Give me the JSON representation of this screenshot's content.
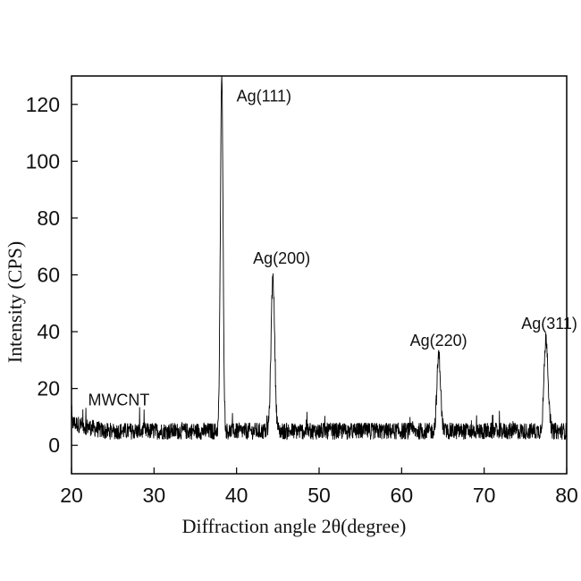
{
  "chart_data": {
    "type": "line",
    "title": "",
    "xlabel": "Diffraction angle 2θ(degree)",
    "ylabel": "Intensity (CPS)",
    "xlim": [
      20,
      80
    ],
    "ylim": [
      -10,
      130
    ],
    "xticks": [
      20,
      30,
      40,
      50,
      60,
      70,
      80
    ],
    "yticks": [
      0,
      20,
      40,
      60,
      80,
      100,
      120
    ],
    "grid": false,
    "line_color": "#000000",
    "baseline": 5,
    "noise_amplitude": 3,
    "peaks": [
      {
        "label": "Ag(111)",
        "x": 38.2,
        "y": 130
      },
      {
        "label": "Ag(200)",
        "x": 44.4,
        "y": 59
      },
      {
        "label": "Ag(220)",
        "x": 64.5,
        "y": 32
      },
      {
        "label": "Ag(311)",
        "x": 77.5,
        "y": 38
      }
    ],
    "annotations": [
      {
        "text": "MWCNT",
        "x": 22,
        "y": 14
      },
      {
        "text": "Ag(111)",
        "x": 40,
        "y": 121
      },
      {
        "text": "Ag(200)",
        "x": 42,
        "y": 64
      },
      {
        "text": "Ag(220)",
        "x": 61,
        "y": 35
      },
      {
        "text": "Ag(311)",
        "x": 74.5,
        "y": 41
      }
    ]
  }
}
